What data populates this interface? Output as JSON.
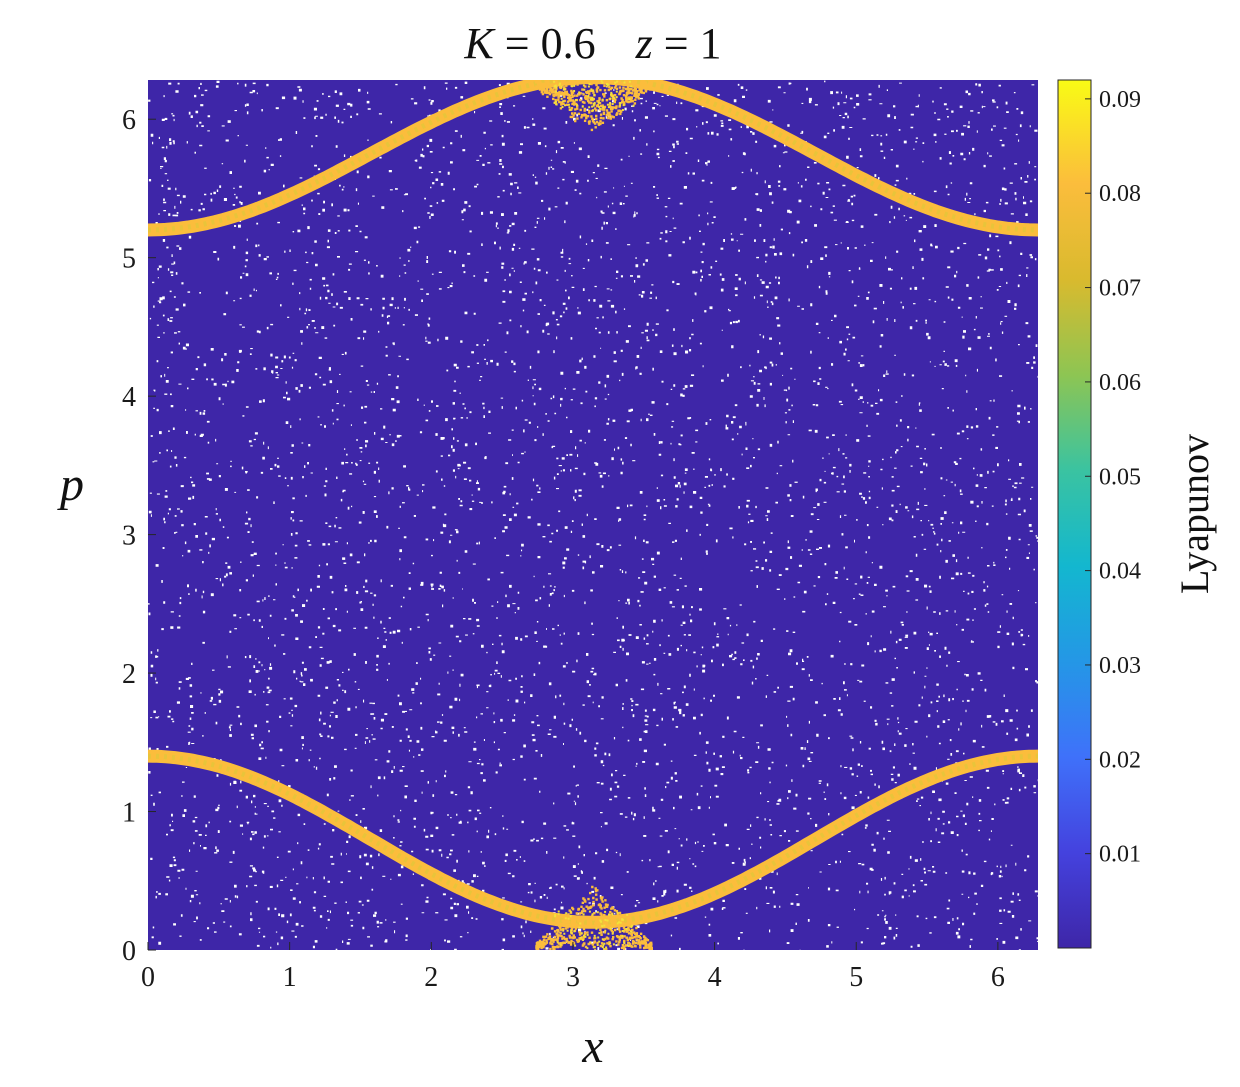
{
  "chart_data": {
    "type": "scatter",
    "title_lhs": "K",
    "title_eq1": " = 0.6",
    "title_zvar": "z",
    "title_eq2": " = 1",
    "xlabel": "x",
    "ylabel": "p",
    "xlim": [
      0,
      6.2832
    ],
    "ylim": [
      0,
      6.2832
    ],
    "xticks": [
      "0",
      "1",
      "2",
      "3",
      "4",
      "5",
      "6"
    ],
    "xtick_values": [
      0,
      1,
      2,
      3,
      4,
      5,
      6
    ],
    "yticks": [
      "0",
      "1",
      "2",
      "3",
      "4",
      "5",
      "6"
    ],
    "ytick_values": [
      0,
      1,
      2,
      3,
      4,
      5,
      6
    ],
    "colorbar": {
      "label": "Lyapunov",
      "range": [
        0.0,
        0.092
      ],
      "tick_values": [
        0.01,
        0.02,
        0.03,
        0.04,
        0.05,
        0.06,
        0.07,
        0.08,
        0.09
      ],
      "tick_labels": [
        "0.01",
        "0.02",
        "0.03",
        "0.04",
        "0.05",
        "0.06",
        "0.07",
        "0.08",
        "0.09"
      ],
      "colormap": "parula"
    },
    "background_value": 0.001,
    "chaotic_band_value": 0.078,
    "band_upper": {
      "center_p": 5.75,
      "amplitude": 0.55,
      "peak_x": 3.1416,
      "half_width": 0.06
    },
    "band_lower": {
      "center_p": 0.8,
      "amplitude": 0.6,
      "peak_x": 0.0,
      "half_width": 0.06
    },
    "grid": false
  }
}
